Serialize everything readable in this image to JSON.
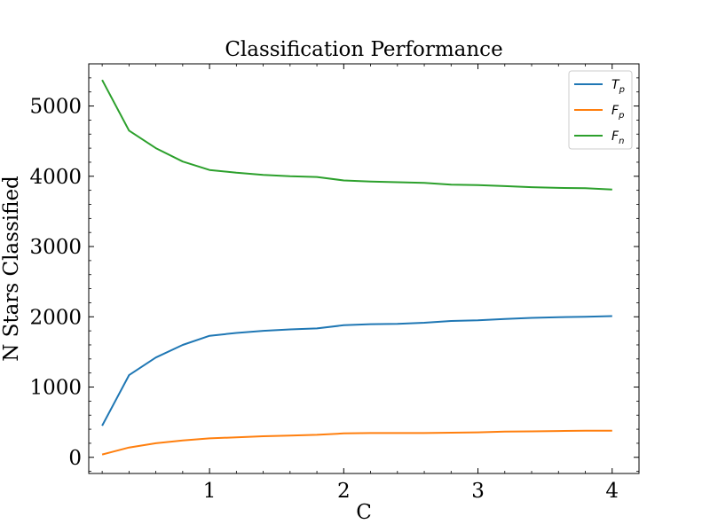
{
  "chart_data": {
    "type": "line",
    "title": "Classification Performance",
    "xlabel": "C",
    "ylabel": "N Stars Classified",
    "xlim": [
      0.1,
      4.2
    ],
    "ylim": [
      -230,
      5600
    ],
    "xticks": [
      1,
      2,
      3,
      4
    ],
    "yticks": [
      0,
      1000,
      2000,
      3000,
      4000,
      5000
    ],
    "minor_ticks": true,
    "ticks_inward": true,
    "grid": false,
    "legend_position": "top-right",
    "x": [
      0.2,
      0.4,
      0.6,
      0.8,
      1.0,
      1.2,
      1.4,
      1.6,
      1.8,
      2.0,
      2.2,
      2.4,
      2.6,
      2.8,
      3.0,
      3.2,
      3.4,
      3.6,
      3.8,
      4.0
    ],
    "series": [
      {
        "name": "T",
        "subscript": "p",
        "color": "#1f77b4",
        "values": [
          450,
          1170,
          1420,
          1600,
          1730,
          1770,
          1800,
          1820,
          1835,
          1880,
          1895,
          1900,
          1915,
          1940,
          1950,
          1970,
          1985,
          1995,
          2000,
          2010
        ]
      },
      {
        "name": "F",
        "subscript": "p",
        "color": "#ff7f0e",
        "values": [
          40,
          140,
          200,
          240,
          270,
          285,
          300,
          310,
          320,
          340,
          345,
          345,
          345,
          350,
          355,
          365,
          370,
          375,
          378,
          380
        ]
      },
      {
        "name": "F",
        "subscript": "n",
        "color": "#2ca02c",
        "values": [
          5370,
          4650,
          4400,
          4210,
          4090,
          4050,
          4020,
          4000,
          3990,
          3940,
          3925,
          3915,
          3905,
          3880,
          3875,
          3860,
          3845,
          3835,
          3830,
          3810
        ]
      }
    ]
  }
}
